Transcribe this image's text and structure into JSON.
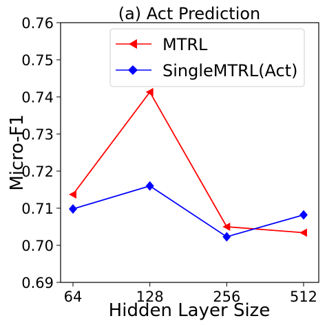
{
  "chart_data": {
    "type": "line",
    "title": "(a) Act Prediction",
    "xlabel": "Hidden Layer Size",
    "ylabel": "Micro-F1",
    "categories": [
      "64",
      "128",
      "256",
      "512"
    ],
    "yticks": [
      "0.69",
      "0.70",
      "0.71",
      "0.72",
      "0.73",
      "0.74",
      "0.75",
      "0.76"
    ],
    "ylim": [
      0.69,
      0.76
    ],
    "grid": false,
    "legend_position": "top-right",
    "series": [
      {
        "name": "MTRL",
        "color": "#ff0000",
        "marker": "triangle-left",
        "values": [
          0.7137,
          0.7413,
          0.705,
          0.7034
        ]
      },
      {
        "name": "SingleMTRL(Act)",
        "color": "#0000ff",
        "marker": "diamond",
        "values": [
          0.7098,
          0.716,
          0.7023,
          0.7082
        ]
      }
    ]
  }
}
